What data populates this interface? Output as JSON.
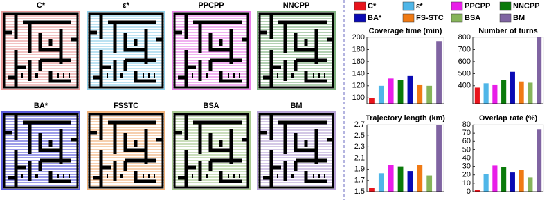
{
  "panels": [
    {
      "title": "C*",
      "color": "#e89a9a"
    },
    {
      "title": "ε*",
      "color": "#8fd0ea"
    },
    {
      "title": "PPCPP",
      "color": "#e77ee7"
    },
    {
      "title": "NNCPP",
      "color": "#7fb07f"
    },
    {
      "title": "BA*",
      "color": "#5a5ad8"
    },
    {
      "title": "FSSTC",
      "color": "#f0b27a"
    },
    {
      "title": "BSA",
      "color": "#a8c890"
    },
    {
      "title": "BM",
      "color": "#b7a3d6"
    }
  ],
  "legend": [
    {
      "name": "C*",
      "color": "#e8141c"
    },
    {
      "name": "ε*",
      "color": "#4fb6e8"
    },
    {
      "name": "PPCPP",
      "color": "#e81ee8"
    },
    {
      "name": "NNCPP",
      "color": "#0a7a0a"
    },
    {
      "name": "BA*",
      "color": "#0a0ab4"
    },
    {
      "name": "FS-STC",
      "color": "#f07a14"
    },
    {
      "name": "BSA",
      "color": "#86b45a"
    },
    {
      "name": "BM",
      "color": "#8064a2"
    }
  ],
  "chart_data": [
    {
      "type": "bar",
      "title": "Coverage time (min)",
      "values": [
        100,
        120,
        132,
        130,
        136,
        121,
        120,
        194
      ],
      "ylim": [
        90,
        200
      ],
      "yticks": [
        100,
        120,
        140,
        160,
        180,
        200
      ]
    },
    {
      "type": "bar",
      "title": "Number of turns",
      "values": [
        385,
        420,
        405,
        445,
        515,
        435,
        425,
        800
      ],
      "ylim": [
        250,
        800
      ],
      "yticks": [
        400,
        500,
        600,
        700,
        800
      ]
    },
    {
      "type": "bar",
      "title": "Trajectory length (km)",
      "values": [
        1.57,
        1.83,
        1.98,
        1.95,
        1.87,
        1.97,
        1.79,
        2.7
      ],
      "ylim": [
        1.5,
        2.7
      ],
      "yticks": [
        1.5,
        1.7,
        1.9,
        2.1,
        2.3,
        2.5,
        2.7
      ]
    },
    {
      "type": "bar",
      "title": "Overlap rate (%)",
      "values": [
        2,
        21,
        31,
        29,
        23,
        26,
        17,
        74
      ],
      "ylim": [
        0,
        80
      ],
      "yticks": [
        0,
        10,
        20,
        30,
        40,
        50,
        60,
        70,
        80
      ]
    }
  ]
}
